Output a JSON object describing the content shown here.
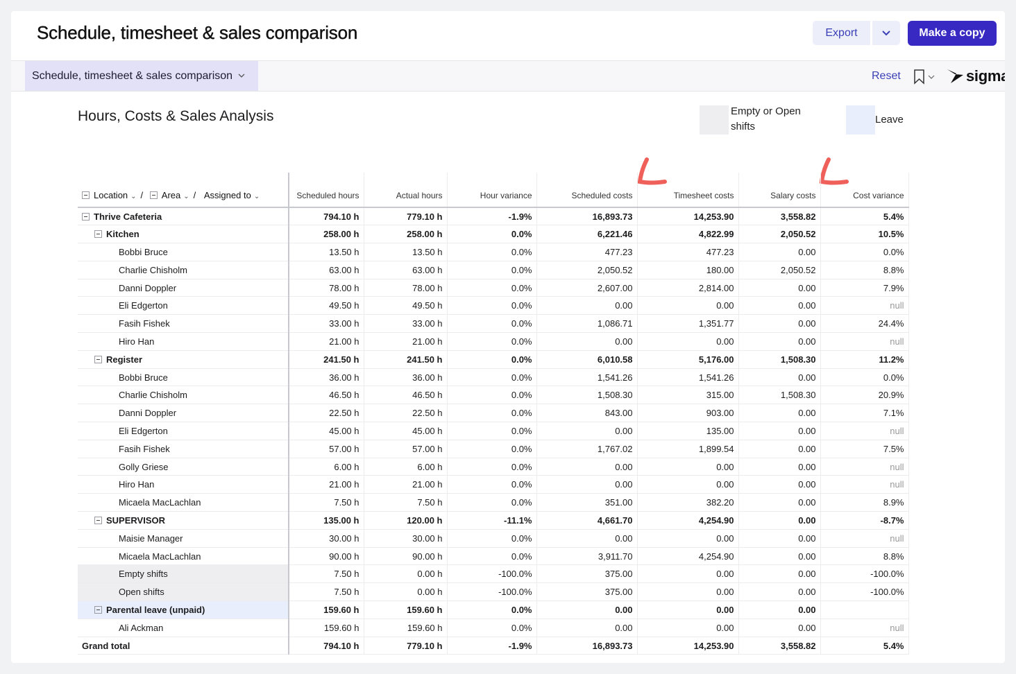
{
  "header": {
    "title": "Schedule, timesheet & sales comparison",
    "export_label": "Export",
    "copy_label": "Make a copy"
  },
  "tabs": {
    "active_label": "Schedule, timesheet & sales comparison",
    "reset_label": "Reset",
    "logo_text": "sigma"
  },
  "section": {
    "title": "Hours, Costs & Sales Analysis"
  },
  "legend": [
    {
      "label_line1": "Empty or Open",
      "label_line2": "shifts",
      "color": "#eeeef1"
    },
    {
      "label_line1": "Leave",
      "label_line2": "",
      "color": "#e8eefc"
    }
  ],
  "table": {
    "group_headers": [
      "Location",
      "Area",
      "Assigned to"
    ],
    "columns": [
      "Scheduled hours",
      "Actual hours",
      "Hour variance",
      "Scheduled costs",
      "Timesheet costs",
      "Salary costs",
      "Cost variance"
    ],
    "rows": [
      {
        "level": 0,
        "label": "Thrive Cafeteria",
        "bold": true,
        "collapse": true,
        "values": [
          "794.10 h",
          "779.10 h",
          "-1.9%",
          "16,893.73",
          "14,253.90",
          "3,558.82",
          "5.4%"
        ]
      },
      {
        "level": 1,
        "label": "Kitchen",
        "bold": true,
        "collapse": true,
        "values": [
          "258.00 h",
          "258.00 h",
          "0.0%",
          "6,221.46",
          "4,822.99",
          "2,050.52",
          "10.5%"
        ]
      },
      {
        "level": 2,
        "label": "Bobbi Bruce",
        "values": [
          "13.50 h",
          "13.50 h",
          "0.0%",
          "477.23",
          "477.23",
          "0.00",
          "0.0%"
        ]
      },
      {
        "level": 2,
        "label": "Charlie Chisholm",
        "values": [
          "63.00 h",
          "63.00 h",
          "0.0%",
          "2,050.52",
          "180.00",
          "2,050.52",
          "8.8%"
        ]
      },
      {
        "level": 2,
        "label": "Danni Doppler",
        "values": [
          "78.00 h",
          "78.00 h",
          "0.0%",
          "2,607.00",
          "2,814.00",
          "0.00",
          "7.9%"
        ]
      },
      {
        "level": 2,
        "label": "Eli Edgerton",
        "values": [
          "49.50 h",
          "49.50 h",
          "0.0%",
          "0.00",
          "0.00",
          "0.00",
          "null"
        ]
      },
      {
        "level": 2,
        "label": "Fasih Fishek",
        "values": [
          "33.00 h",
          "33.00 h",
          "0.0%",
          "1,086.71",
          "1,351.77",
          "0.00",
          "24.4%"
        ]
      },
      {
        "level": 2,
        "label": "Hiro Han",
        "values": [
          "21.00 h",
          "21.00 h",
          "0.0%",
          "0.00",
          "0.00",
          "0.00",
          "null"
        ]
      },
      {
        "level": 1,
        "label": "Register",
        "bold": true,
        "collapse": true,
        "values": [
          "241.50 h",
          "241.50 h",
          "0.0%",
          "6,010.58",
          "5,176.00",
          "1,508.30",
          "11.2%"
        ]
      },
      {
        "level": 2,
        "label": "Bobbi Bruce",
        "values": [
          "36.00 h",
          "36.00 h",
          "0.0%",
          "1,541.26",
          "1,541.26",
          "0.00",
          "0.0%"
        ]
      },
      {
        "level": 2,
        "label": "Charlie Chisholm",
        "values": [
          "46.50 h",
          "46.50 h",
          "0.0%",
          "1,508.30",
          "315.00",
          "1,508.30",
          "20.9%"
        ]
      },
      {
        "level": 2,
        "label": "Danni Doppler",
        "values": [
          "22.50 h",
          "22.50 h",
          "0.0%",
          "843.00",
          "903.00",
          "0.00",
          "7.1%"
        ]
      },
      {
        "level": 2,
        "label": "Eli Edgerton",
        "values": [
          "45.00 h",
          "45.00 h",
          "0.0%",
          "0.00",
          "135.00",
          "0.00",
          "null"
        ]
      },
      {
        "level": 2,
        "label": "Fasih Fishek",
        "values": [
          "57.00 h",
          "57.00 h",
          "0.0%",
          "1,767.02",
          "1,899.54",
          "0.00",
          "7.5%"
        ]
      },
      {
        "level": 2,
        "label": "Golly Griese",
        "values": [
          "6.00 h",
          "6.00 h",
          "0.0%",
          "0.00",
          "0.00",
          "0.00",
          "null"
        ]
      },
      {
        "level": 2,
        "label": "Hiro Han",
        "values": [
          "21.00 h",
          "21.00 h",
          "0.0%",
          "0.00",
          "0.00",
          "0.00",
          "null"
        ]
      },
      {
        "level": 2,
        "label": "Micaela MacLachlan",
        "values": [
          "7.50 h",
          "7.50 h",
          "0.0%",
          "351.00",
          "382.20",
          "0.00",
          "8.9%"
        ]
      },
      {
        "level": 1,
        "label": "SUPERVISOR",
        "bold": true,
        "collapse": true,
        "values": [
          "135.00 h",
          "120.00 h",
          "-11.1%",
          "4,661.70",
          "4,254.90",
          "0.00",
          "-8.7%"
        ]
      },
      {
        "level": 2,
        "label": "Maisie Manager",
        "values": [
          "30.00 h",
          "30.00 h",
          "0.0%",
          "0.00",
          "0.00",
          "0.00",
          "null"
        ]
      },
      {
        "level": 2,
        "label": "Micaela MacLachlan",
        "values": [
          "90.00 h",
          "90.00 h",
          "0.0%",
          "3,911.70",
          "4,254.90",
          "0.00",
          "8.8%"
        ]
      },
      {
        "level": 2,
        "label": "Empty shifts",
        "shade": "empty",
        "values": [
          "7.50 h",
          "0.00 h",
          "-100.0%",
          "375.00",
          "0.00",
          "0.00",
          "-100.0%"
        ]
      },
      {
        "level": 2,
        "label": "Open shifts",
        "shade": "empty",
        "values": [
          "7.50 h",
          "0.00 h",
          "-100.0%",
          "375.00",
          "0.00",
          "0.00",
          "-100.0%"
        ]
      },
      {
        "level": 1,
        "label": "Parental leave (unpaid)",
        "bold": true,
        "collapse": true,
        "shade": "leave",
        "values": [
          "159.60 h",
          "159.60 h",
          "0.0%",
          "0.00",
          "0.00",
          "0.00",
          ""
        ]
      },
      {
        "level": 2,
        "label": "Ali Ackman",
        "values": [
          "159.60 h",
          "159.60 h",
          "0.0%",
          "0.00",
          "0.00",
          "0.00",
          "null"
        ]
      },
      {
        "level": 0,
        "label": "Grand total",
        "bold": true,
        "values": [
          "794.10 h",
          "779.10 h",
          "-1.9%",
          "16,893.73",
          "14,253.90",
          "3,558.82",
          "5.4%"
        ]
      }
    ]
  },
  "colors": {
    "accent": "#3729c2",
    "annotation": "#f0605a"
  }
}
